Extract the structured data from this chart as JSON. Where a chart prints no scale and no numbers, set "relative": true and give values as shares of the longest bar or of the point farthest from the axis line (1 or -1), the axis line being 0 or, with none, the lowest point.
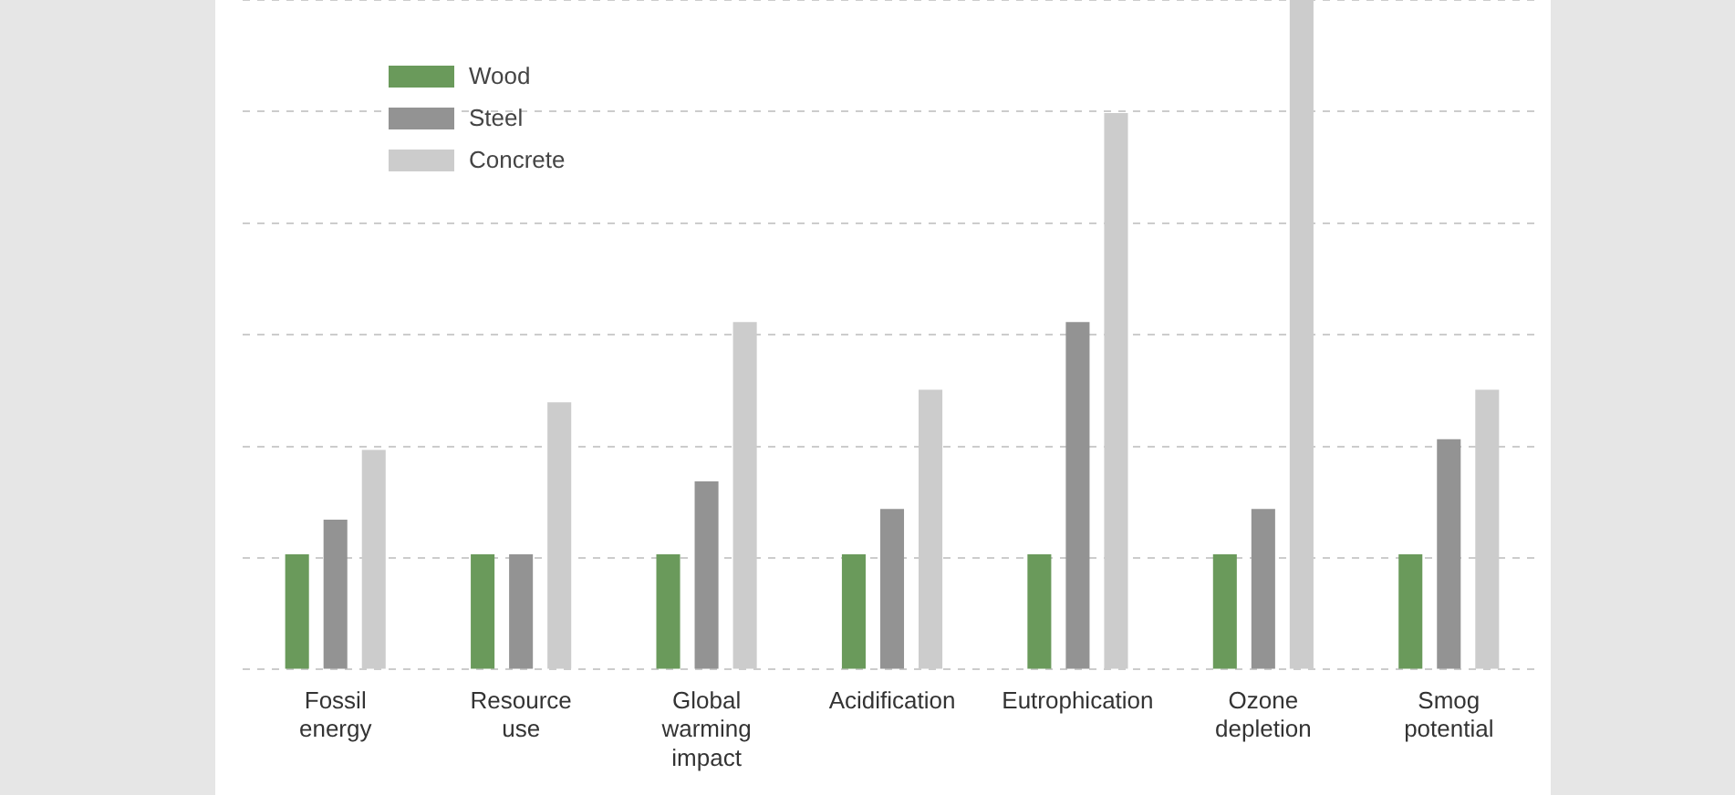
{
  "chart_data": {
    "type": "bar",
    "relative": true,
    "grid": "y",
    "legend": "top left",
    "categories": [
      "Fossil energy",
      "Resource use",
      "Global warming impact",
      "Acidification",
      "Eutrophication",
      "Ozone depletion",
      "Smog potential"
    ],
    "series": [
      {
        "name": "Wood",
        "color": "#6a9a5b",
        "values": [
          0.172,
          0.172,
          0.172,
          0.172,
          0.172,
          0.172,
          0.172
        ]
      },
      {
        "name": "Steel",
        "color": "#939393",
        "values": [
          0.224,
          0.172,
          0.281,
          0.24,
          0.519,
          0.24,
          0.344
        ]
      },
      {
        "name": "Concrete",
        "color": "#cccccc",
        "values": [
          0.328,
          0.399,
          0.519,
          0.418,
          0.831,
          1,
          0.418
        ]
      }
    ]
  }
}
